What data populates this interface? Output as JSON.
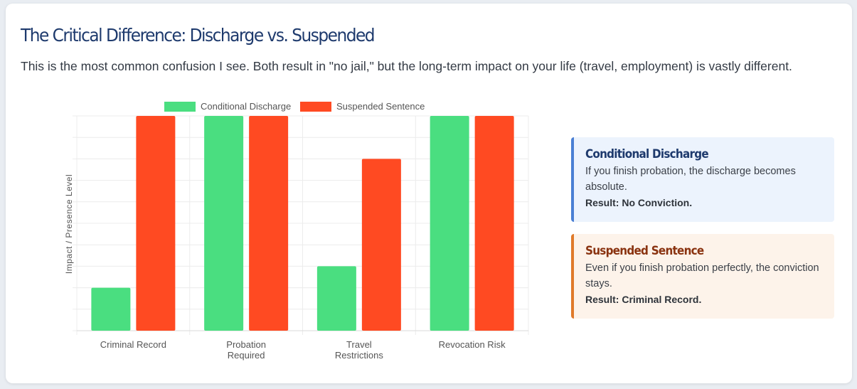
{
  "header": {
    "title": "The Critical Difference: Discharge vs. Suspended",
    "subtitle": "This is the most common confusion I see. Both result in \"no jail,\" but the long-term impact on your life (travel, employment) is vastly different."
  },
  "chart_data": {
    "type": "bar",
    "categories": [
      [
        "Criminal Record"
      ],
      [
        "Probation",
        "Required"
      ],
      [
        "Travel",
        "Restrictions"
      ],
      [
        "Revocation Risk"
      ]
    ],
    "series": [
      {
        "name": "Conditional Discharge",
        "values": [
          2,
          10,
          3,
          10
        ],
        "color": "#4ade80"
      },
      {
        "name": "Suspended Sentence",
        "values": [
          10,
          10,
          8,
          10
        ],
        "color": "#ff4a22"
      }
    ],
    "title": "",
    "xlabel": "",
    "ylabel": "Impact / Presence Level",
    "ylim": [
      0,
      10
    ],
    "grid": true,
    "legend": "top-center"
  },
  "callouts": {
    "discharge": {
      "title": "Conditional Discharge",
      "text": "If you finish probation, the discharge becomes absolute.",
      "result": "Result: No Conviction."
    },
    "suspended": {
      "title": "Suspended Sentence",
      "text": "Even if you finish probation perfectly, the conviction stays.",
      "result": "Result: Criminal Record."
    }
  }
}
